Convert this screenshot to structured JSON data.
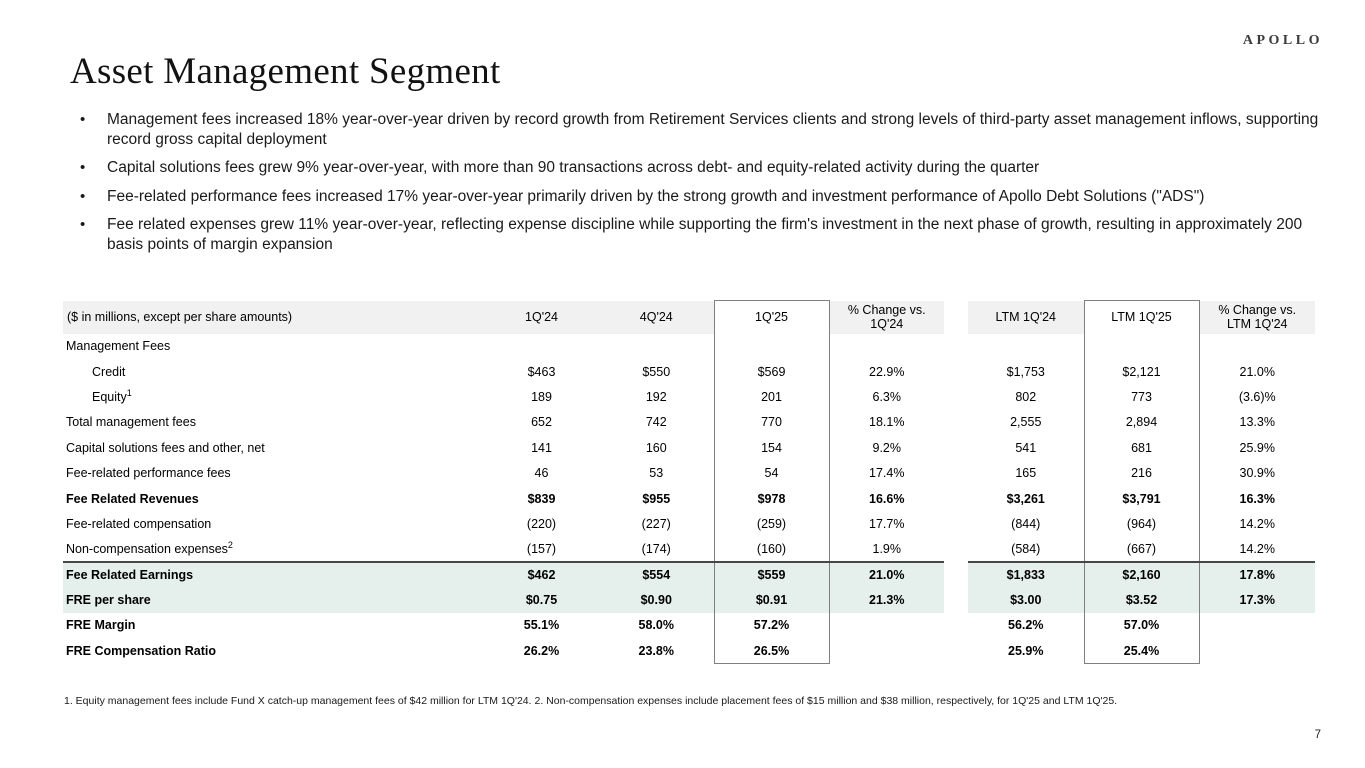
{
  "brand": {
    "logo_text": "APOLLO"
  },
  "page": {
    "title": "Asset Management Segment",
    "page_number": "7"
  },
  "bullets": [
    "Management fees increased 18% year-over-year driven by record growth from Retirement Services clients and strong levels of third-party asset management inflows, supporting record gross capital deployment",
    "Capital solutions fees grew 9% year-over-year, with more than 90 transactions across debt- and equity-related activity during the quarter",
    "Fee-related performance fees increased 17% year-over-year primarily driven by the strong growth and investment performance of Apollo Debt Solutions (\"ADS\")",
    "Fee related expenses grew 11% year-over-year, reflecting expense discipline while supporting the firm's investment in the next phase of growth, resulting in approximately 200 basis points of margin expansion"
  ],
  "table": {
    "headers": [
      "($ in millions, except per share amounts)",
      "1Q'24",
      "4Q'24",
      "1Q'25",
      "% Change vs.\n1Q'24",
      "LTM 1Q'24",
      "LTM 1Q'25",
      "% Change vs.\nLTM 1Q'24"
    ],
    "rows": [
      {
        "label": "Management Fees",
        "style": "",
        "values": [
          "",
          "",
          "",
          "",
          "",
          "",
          ""
        ]
      },
      {
        "label": "Credit",
        "indent": 1,
        "style": "",
        "values": [
          "$463",
          "$550",
          "$569",
          "22.9%",
          "$1,753",
          "$2,121",
          "21.0%"
        ]
      },
      {
        "label": "Equity",
        "sup": "1",
        "indent": 1,
        "style": "",
        "values": [
          "189",
          "192",
          "201",
          "6.3%",
          "802",
          "773",
          "(3.6)%"
        ]
      },
      {
        "label": "Total management fees",
        "style": "",
        "values": [
          "652",
          "742",
          "770",
          "18.1%",
          "2,555",
          "2,894",
          "13.3%"
        ]
      },
      {
        "label": "Capital solutions fees and other, net",
        "style": "",
        "values": [
          "141",
          "160",
          "154",
          "9.2%",
          "541",
          "681",
          "25.9%"
        ]
      },
      {
        "label": "Fee-related performance fees",
        "style": "",
        "values": [
          "46",
          "53",
          "54",
          "17.4%",
          "165",
          "216",
          "30.9%"
        ]
      },
      {
        "label": "Fee Related Revenues",
        "style": "bold",
        "values": [
          "$839",
          "$955",
          "$978",
          "16.6%",
          "$3,261",
          "$3,791",
          "16.3%"
        ]
      },
      {
        "label": "Fee-related compensation",
        "style": "",
        "values": [
          "(220)",
          "(227)",
          "(259)",
          "17.7%",
          "(844)",
          "(964)",
          "14.2%"
        ]
      },
      {
        "label": "Non-compensation expenses",
        "sup": "2",
        "style": "",
        "values": [
          "(157)",
          "(174)",
          "(160)",
          "1.9%",
          "(584)",
          "(667)",
          "14.2%"
        ]
      },
      {
        "label": "Fee Related Earnings",
        "style": "bold highlight topline",
        "values": [
          "$462",
          "$554",
          "$559",
          "21.0%",
          "$1,833",
          "$2,160",
          "17.8%"
        ]
      },
      {
        "label": "FRE per share",
        "style": "bold highlight",
        "values": [
          "$0.75",
          "$0.90",
          "$0.91",
          "21.3%",
          "$3.00",
          "$3.52",
          "17.3%"
        ]
      },
      {
        "label": "FRE Margin",
        "style": "bold",
        "values": [
          "55.1%",
          "58.0%",
          "57.2%",
          "",
          "56.2%",
          "57.0%",
          ""
        ]
      },
      {
        "label": "FRE Compensation Ratio",
        "style": "bold",
        "values": [
          "26.2%",
          "23.8%",
          "26.5%",
          "",
          "25.9%",
          "25.4%",
          ""
        ]
      }
    ]
  },
  "footnote": "1. Equity management fees include Fund X catch-up management fees of $42 million for LTM 1Q'24. 2. Non-compensation expenses include placement fees of $15 million and $38 million, respectively, for 1Q'25 and LTM 1Q'25.",
  "colors": {
    "highlight_row": "#e5f0ec",
    "header_row_bg": "#f1f1f1",
    "column_box_border": "#7f7f7f",
    "divider_line": "#474747"
  }
}
